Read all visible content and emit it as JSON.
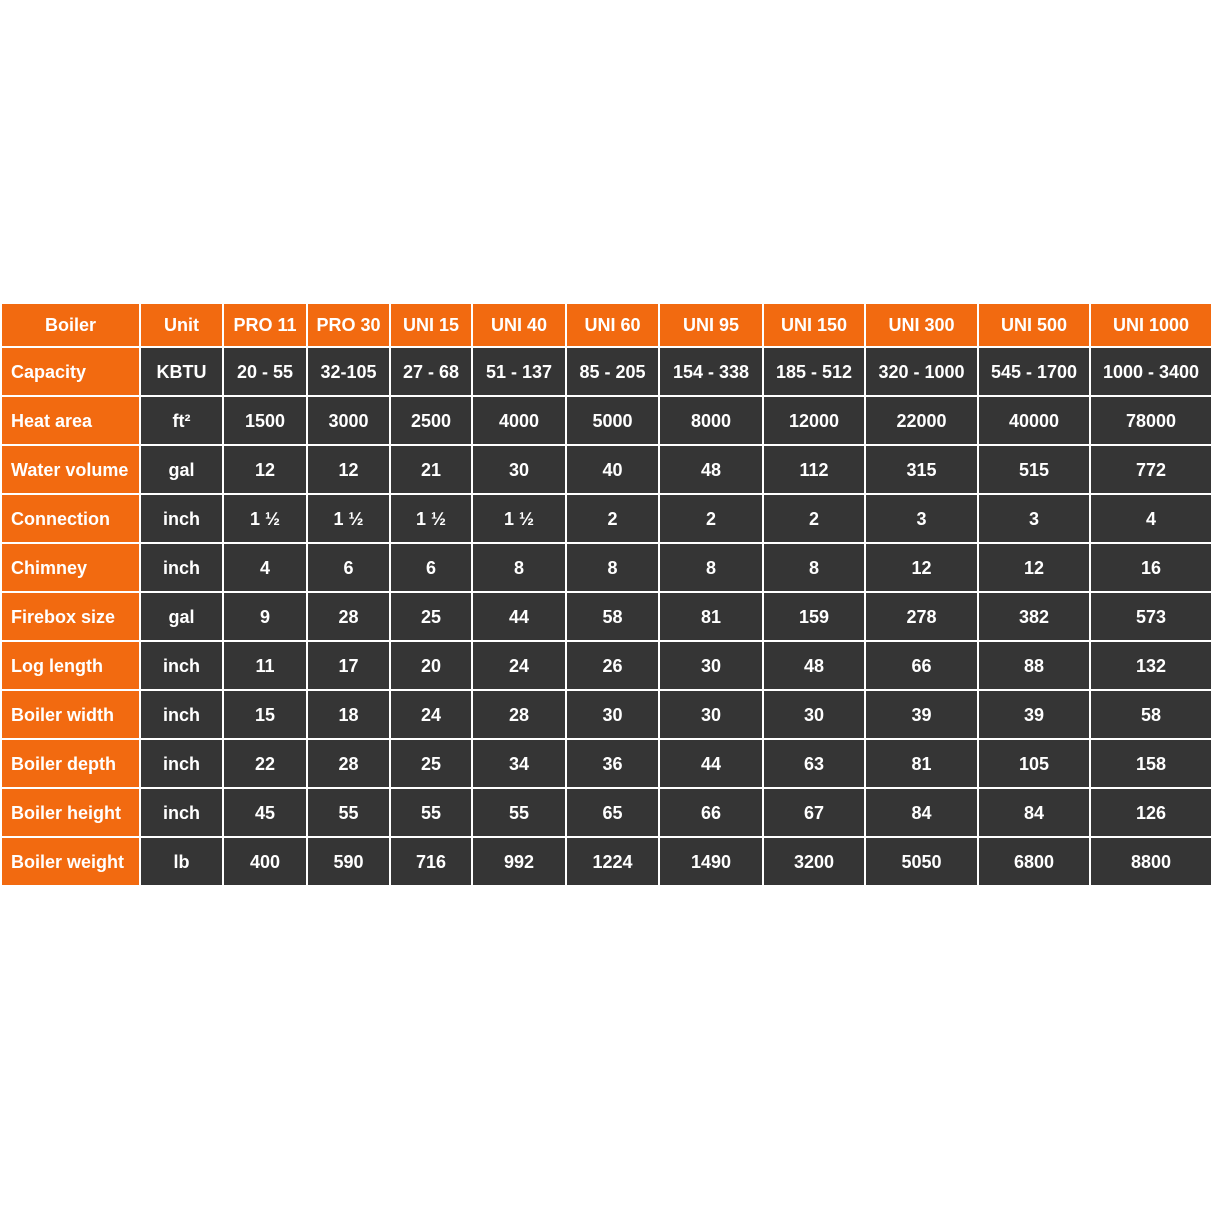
{
  "table": {
    "header": [
      "Boiler",
      "Unit",
      "PRO 11",
      "PRO 30",
      "UNI 15",
      "UNI 40",
      "UNI 60",
      "UNI 95",
      "UNI 150",
      "UNI 300",
      "UNI 500",
      "UNI 1000"
    ],
    "rows": [
      [
        "Capacity",
        "KBTU",
        "20 - 55",
        "32-105",
        "27 - 68",
        "51 - 137",
        "85 - 205",
        "154 - 338",
        "185 - 512",
        "320 - 1000",
        "545 - 1700",
        "1000 - 3400"
      ],
      [
        "Heat area",
        "ft²",
        "1500",
        "3000",
        "2500",
        "4000",
        "5000",
        "8000",
        "12000",
        "22000",
        "40000",
        "78000"
      ],
      [
        "Water volume",
        "gal",
        "12",
        "12",
        "21",
        "30",
        "40",
        "48",
        "112",
        "315",
        "515",
        "772"
      ],
      [
        "Connection",
        "inch",
        "1 ½",
        "1 ½",
        "1 ½",
        "1 ½",
        "2",
        "2",
        "2",
        "3",
        "3",
        "4"
      ],
      [
        "Chimney",
        "inch",
        "4",
        "6",
        "6",
        "8",
        "8",
        "8",
        "8",
        "12",
        "12",
        "16"
      ],
      [
        "Firebox size",
        "gal",
        "9",
        "28",
        "25",
        "44",
        "58",
        "81",
        "159",
        "278",
        "382",
        "573"
      ],
      [
        "Log length",
        "inch",
        "11",
        "17",
        "20",
        "24",
        "26",
        "30",
        "48",
        "66",
        "88",
        "132"
      ],
      [
        "Boiler width",
        "inch",
        "15",
        "18",
        "24",
        "28",
        "30",
        "30",
        "30",
        "39",
        "39",
        "58"
      ],
      [
        "Boiler depth",
        "inch",
        "22",
        "28",
        "25",
        "34",
        "36",
        "44",
        "63",
        "81",
        "105",
        "158"
      ],
      [
        "Boiler height",
        "inch",
        "45",
        "55",
        "55",
        "55",
        "65",
        "66",
        "67",
        "84",
        "84",
        "126"
      ],
      [
        "Boiler weight",
        "lb",
        "400",
        "590",
        "716",
        "992",
        "1224",
        "1490",
        "3200",
        "5050",
        "6800",
        "8800"
      ]
    ]
  }
}
